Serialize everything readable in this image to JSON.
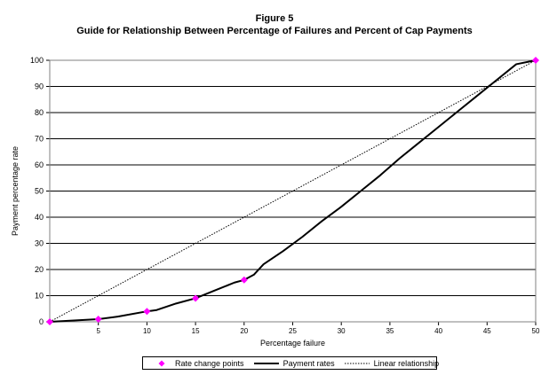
{
  "chart_data": {
    "type": "line",
    "title": "Figure 5",
    "subtitle": "Guide for Relationship Between Percentage of Failures and Percent of Cap Payments",
    "xlabel": "Percentage failure",
    "ylabel": "Payment percentage rate",
    "xlim": [
      0,
      50
    ],
    "ylim": [
      0,
      100
    ],
    "xticks": [
      5,
      10,
      15,
      20,
      25,
      30,
      35,
      40,
      45,
      50
    ],
    "yticks": [
      0,
      10,
      20,
      30,
      40,
      50,
      60,
      70,
      80,
      90,
      100
    ],
    "grid": "horizontal",
    "legend_position": "bottom",
    "series": [
      {
        "name": "Rate change points",
        "style": "markers",
        "color": "#ff00ff",
        "x": [
          0,
          5,
          10,
          15,
          20,
          50
        ],
        "y": [
          0,
          1,
          4,
          9,
          16,
          100
        ]
      },
      {
        "name": "Payment rates",
        "style": "solid",
        "color": "#000000",
        "x": [
          0,
          5,
          7,
          10,
          11,
          13,
          15,
          17,
          19,
          20,
          21,
          22,
          24,
          26,
          28,
          30,
          32,
          34,
          36,
          38,
          40,
          42,
          44,
          46,
          48,
          50
        ],
        "y": [
          0,
          1,
          2,
          4,
          4.5,
          7,
          9,
          12,
          15,
          16,
          18,
          22,
          27,
          32.5,
          38.5,
          44,
          50,
          56,
          62.5,
          68.5,
          74.5,
          80.5,
          86.5,
          92.5,
          98.5,
          100
        ]
      },
      {
        "name": "Linear relationship",
        "style": "dotted",
        "color": "#000000",
        "x": [
          0,
          50
        ],
        "y": [
          0,
          100
        ]
      }
    ]
  }
}
